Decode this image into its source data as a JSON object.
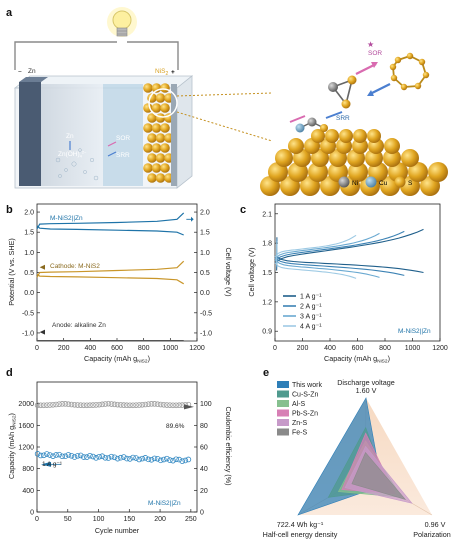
{
  "colors": {
    "blue": "#1e73a8",
    "gold": "#c9962a",
    "gray": "#7f7f7f",
    "lightblue1": "#2b6f9e",
    "lightblue2": "#4a8fbe",
    "lightblue3": "#78b1d4",
    "lightblue4": "#a6cfe6"
  },
  "panel_a": {
    "label": "a",
    "zn_anode_label": "Zn",
    "minus_sign": "−",
    "cathode_label": "NiS",
    "cathode_sub": "2",
    "plus_sign": "+",
    "zn_text": "Zn",
    "zn_ion_text": "Zn(OH)",
    "zn_ion_sub": "4",
    "zn_ion_sup": "2−",
    "sor_text": "SOR",
    "srr_text": "SRR",
    "zoom_sor": "SOR",
    "zoom_srr": "SRR",
    "legend": [
      {
        "label": "Ni",
        "icon": "ni-atom-icon"
      },
      {
        "label": "Cu",
        "icon": "cu-atom-icon"
      },
      {
        "label": "S",
        "icon": "s-atom-icon"
      }
    ]
  },
  "chart_data": [
    {
      "panel": "b",
      "type": "line",
      "title": "",
      "xlabel": "Capacity (mAh g",
      "xlabel_sub": "NiS2",
      "xlabel_end": ")",
      "ylabel_left": "Potential (V vs. SHE)",
      "ylabel_right": "Cell voltage (V)",
      "xlim": [
        0,
        1200
      ],
      "ylim_left": [
        -1.2,
        2.2
      ],
      "ylim_right": [
        -1.2,
        2.2
      ],
      "xticks": [
        0,
        200,
        400,
        600,
        800,
        1000,
        1200
      ],
      "yticks_left": [
        "-1.0",
        "-0.5",
        "0.0",
        "0.5",
        "1.0",
        "1.5",
        "2.0"
      ],
      "yticks_right": [
        "-1.0",
        "-0.5",
        "0.0",
        "0.5",
        "1.0",
        "1.5",
        "2.0"
      ],
      "annotations": [
        "M-NiS2||Zn",
        "Cathode: M-NiS2",
        "Anode: alkaline Zn"
      ],
      "series": [
        {
          "name": "M-NiS2||Zn charge",
          "color": "#1e73a8",
          "x": [
            0,
            20,
            100,
            300,
            600,
            900,
            1050,
            1100
          ],
          "y": [
            1.58,
            1.7,
            1.71,
            1.72,
            1.74,
            1.77,
            1.82,
            1.98
          ]
        },
        {
          "name": "M-NiS2||Zn discharge",
          "color": "#1e73a8",
          "x": [
            0,
            20,
            100,
            300,
            600,
            900,
            1050,
            1100
          ],
          "y": [
            1.66,
            1.6,
            1.58,
            1.57,
            1.55,
            1.53,
            1.5,
            1.43
          ]
        },
        {
          "name": "Cathode charge",
          "color": "#c9962a",
          "x": [
            0,
            20,
            100,
            300,
            600,
            900,
            1050,
            1100
          ],
          "y": [
            0.38,
            0.5,
            0.51,
            0.52,
            0.55,
            0.58,
            0.62,
            0.78
          ]
        },
        {
          "name": "Cathode discharge",
          "color": "#c9962a",
          "x": [
            0,
            20,
            100,
            300,
            600,
            900,
            1050,
            1100
          ],
          "y": [
            0.46,
            0.41,
            0.4,
            0.39,
            0.37,
            0.35,
            0.32,
            0.22
          ]
        },
        {
          "name": "Anode",
          "color": "#555555",
          "x": [
            0,
            1100
          ],
          "y": [
            -1.19,
            -1.19
          ]
        }
      ]
    },
    {
      "panel": "c",
      "type": "line",
      "title": "",
      "xlabel": "Capacity (mAh g",
      "xlabel_sub": "NiS2",
      "xlabel_end": ")",
      "ylabel": "Cell voltage (V)",
      "xlim": [
        0,
        1200
      ],
      "ylim": [
        0.8,
        2.2
      ],
      "xticks": [
        0,
        200,
        400,
        600,
        800,
        1000,
        1200
      ],
      "yticks": [
        "0.9",
        "1.2",
        "1.5",
        "1.8",
        "2.1"
      ],
      "annotation": "M-NiS2||Zn",
      "legend": [
        "1 A g⁻¹",
        "2 A g⁻¹",
        "3 A g⁻¹",
        "4 A g⁻¹"
      ],
      "series": [
        {
          "name": "1 A g⁻¹",
          "color": "#1f5f8b",
          "cap": 1080,
          "ch_start": 1.6,
          "ch_end": 1.94,
          "dis_start": 1.67,
          "dis_end": 1.5
        },
        {
          "name": "2 A g⁻¹",
          "color": "#3c82b4",
          "cap": 940,
          "ch_start": 1.62,
          "ch_end": 1.92,
          "dis_start": 1.65,
          "dis_end": 1.47
        },
        {
          "name": "3 A g⁻¹",
          "color": "#6aa9d1",
          "cap": 760,
          "ch_start": 1.64,
          "ch_end": 1.9,
          "dis_start": 1.63,
          "dis_end": 1.45
        },
        {
          "name": "4 A g⁻¹",
          "color": "#9ecae4",
          "cap": 590,
          "ch_start": 1.66,
          "ch_end": 1.88,
          "dis_start": 1.6,
          "dis_end": 1.44
        }
      ]
    },
    {
      "panel": "d",
      "type": "scatter",
      "title": "",
      "xlabel": "Cycle number",
      "ylabel_left": "Capacity (mAh g",
      "ylabel_left_sub": "NiS2",
      "ylabel_left_end": ")",
      "ylabel_right": "Coulombic efficiency (%)",
      "xlim": [
        0,
        260
      ],
      "ylim_left": [
        0,
        2400
      ],
      "ylim_right": [
        0,
        120
      ],
      "xticks": [
        0,
        50,
        100,
        150,
        200,
        250
      ],
      "yticks_left": [
        0,
        400,
        800,
        1200,
        1600,
        2000
      ],
      "yticks_right": [
        0,
        20,
        40,
        60,
        80,
        100
      ],
      "annotations": [
        "1 A g⁻¹",
        "89.6%",
        "M-NiS2||Zn"
      ],
      "series": [
        {
          "name": "Capacity",
          "color": "#2e86c1",
          "start": 1060,
          "end": 950
        },
        {
          "name": "Coulombic efficiency",
          "color": "#9a9a9a",
          "value": 100
        }
      ]
    },
    {
      "panel": "e",
      "type": "radar",
      "title": "",
      "axes": [
        {
          "label": "Discharge voltage",
          "value_label": "1.60 V"
        },
        {
          "label": "Polarization",
          "value_label": "0.96 V"
        },
        {
          "label": "Half-cell energy density",
          "value_label": "722.4 Wh kg⁻¹"
        }
      ],
      "legend": [
        "This work",
        "Cu-S-Zn",
        "Al-S",
        "Pb-S-Zn",
        "Zn-S",
        "Fe-S"
      ],
      "series": [
        {
          "name": "This work",
          "color": "#2e7fb8",
          "values": [
            1.0,
            0.25,
            1.0
          ]
        },
        {
          "name": "Cu-S-Zn",
          "color": "#4f9a8e",
          "values": [
            0.62,
            0.35,
            0.55
          ]
        },
        {
          "name": "Al-S",
          "color": "#86c08f",
          "values": [
            0.45,
            0.55,
            0.4
          ]
        },
        {
          "name": "Pb-S-Zn",
          "color": "#d77fb5",
          "values": [
            0.55,
            0.45,
            0.35
          ]
        },
        {
          "name": "Zn-S",
          "color": "#c79ac9",
          "values": [
            0.38,
            0.7,
            0.3
          ]
        },
        {
          "name": "Fe-S",
          "color": "#8a8a8a",
          "values": [
            0.3,
            0.6,
            0.2
          ]
        }
      ]
    }
  ]
}
